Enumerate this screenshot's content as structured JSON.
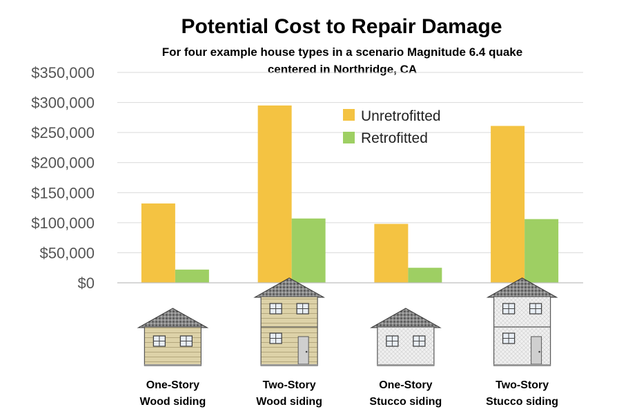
{
  "chart_data": {
    "type": "bar",
    "title": "Potential Cost to Repair Damage",
    "subtitle_lines": [
      "For four example house types in a scenario Magnitude 6.4 quake",
      "centered in Northridge, CA"
    ],
    "categories": [
      [
        "One-Story",
        "Wood siding"
      ],
      [
        "Two-Story",
        "Wood siding"
      ],
      [
        "One-Story",
        "Stucco siding"
      ],
      [
        "Two-Story",
        "Stucco siding"
      ]
    ],
    "series": [
      {
        "name": "Unretrofitted",
        "color": "#F4C342",
        "values": [
          132000,
          295000,
          98000,
          261000
        ]
      },
      {
        "name": "Retrofitted",
        "color": "#9ECF63",
        "values": [
          22000,
          107000,
          25000,
          106000
        ]
      }
    ],
    "ylim": [
      0,
      350000
    ],
    "yticks": [
      0,
      50000,
      100000,
      150000,
      200000,
      250000,
      300000,
      350000
    ],
    "ytick_labels": [
      "$0",
      "$50,000",
      "$100,000",
      "$150,000",
      "$200,000",
      "$250,000",
      "$300,000",
      "$350,000"
    ],
    "grid": true,
    "legend_position": "top-right-inside"
  },
  "house_images": [
    {
      "stories": 1,
      "siding": "wood"
    },
    {
      "stories": 2,
      "siding": "wood"
    },
    {
      "stories": 1,
      "siding": "stucco"
    },
    {
      "stories": 2,
      "siding": "stucco"
    }
  ]
}
